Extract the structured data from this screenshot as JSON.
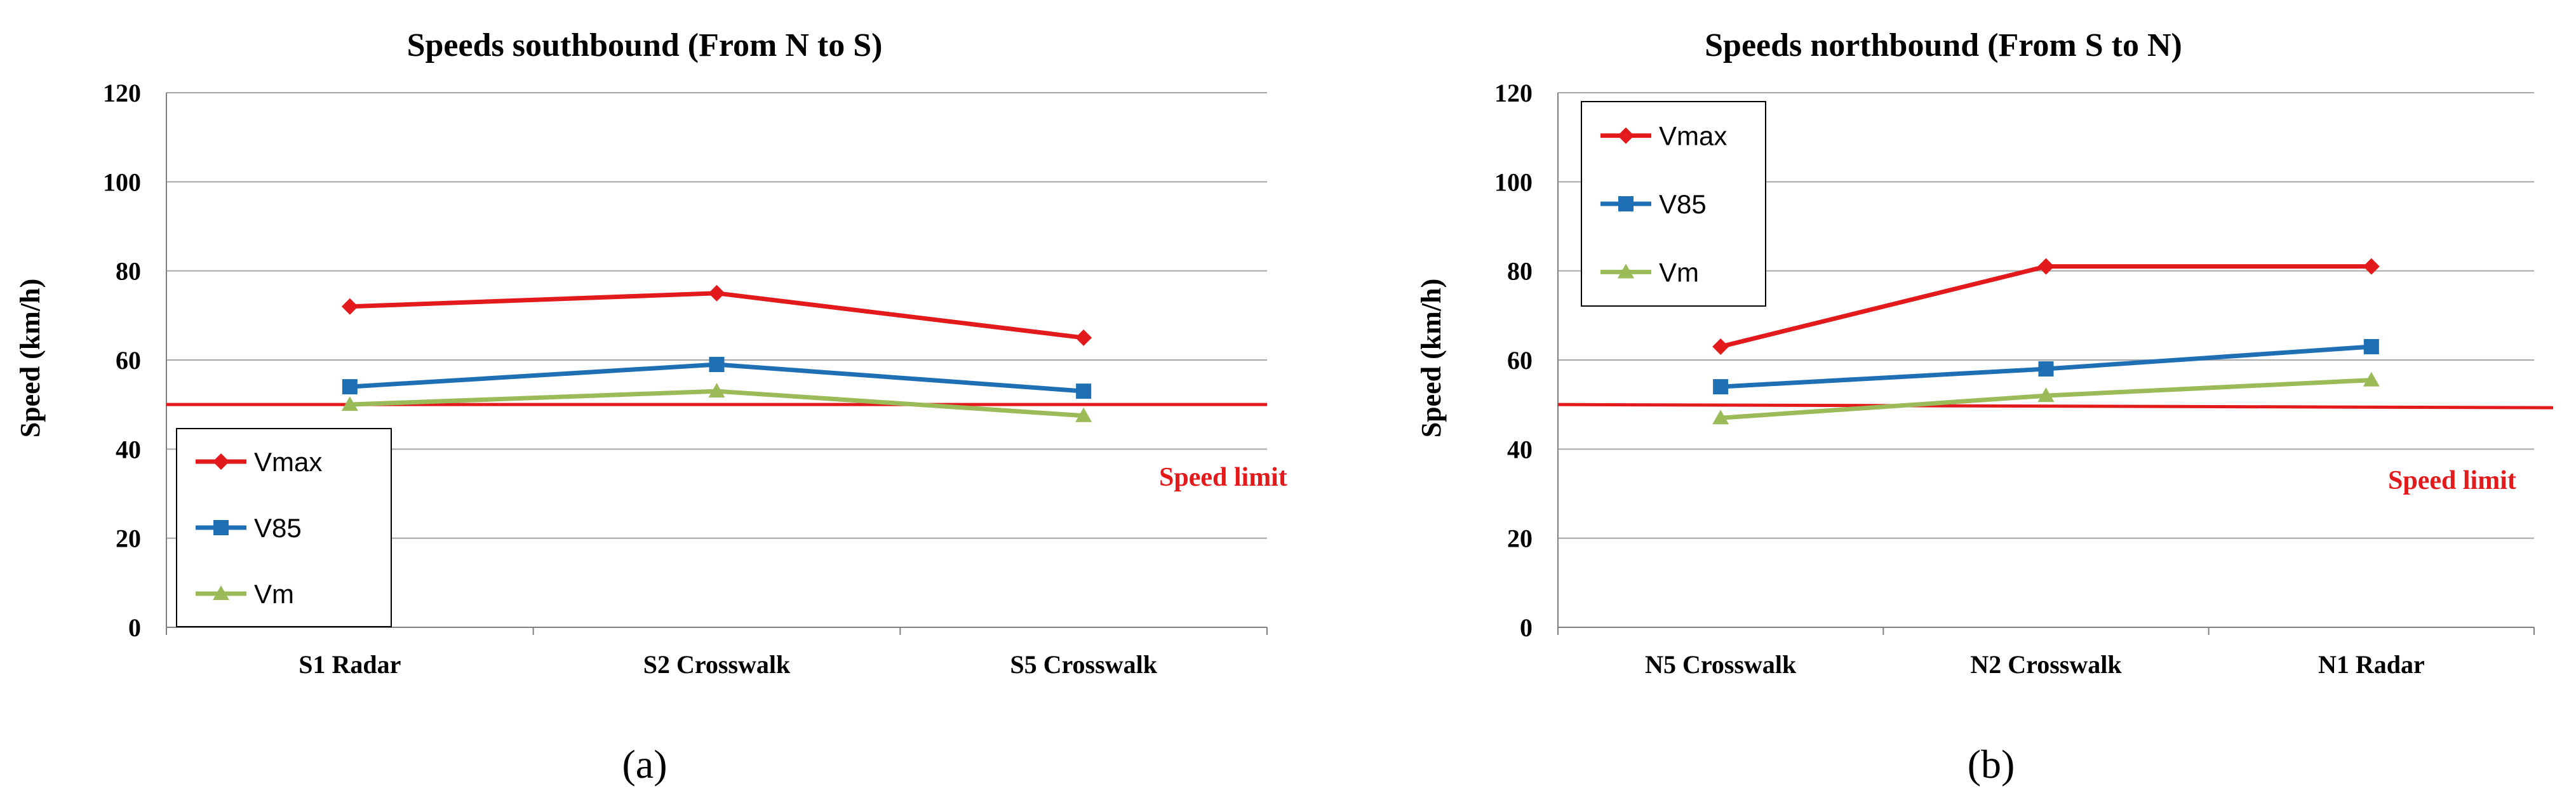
{
  "chart_data": [
    {
      "type": "line",
      "title": "Speeds southbound (From N to S)",
      "ylabel": "Speed (km/h)",
      "xlabel": "",
      "ylim": [
        0,
        120
      ],
      "yticks": [
        0,
        20,
        40,
        60,
        80,
        100,
        120
      ],
      "categories": [
        "S1 Radar",
        "S2 Crosswalk",
        "S5 Crosswalk"
      ],
      "series": [
        {
          "name": "Vmax",
          "color": "#e31a1c",
          "marker": "diamond",
          "values": [
            72,
            75,
            65
          ]
        },
        {
          "name": "V85",
          "color": "#1f6fb5",
          "marker": "square",
          "values": [
            54,
            59,
            53
          ]
        },
        {
          "name": "Vm",
          "color": "#9bbb59",
          "marker": "triangle",
          "values": [
            50,
            53,
            47.5
          ]
        }
      ],
      "reference_line": {
        "label": "Speed limit",
        "value": 50,
        "color": "#e31a1c"
      },
      "legend": "bottom-left",
      "caption": "(a)"
    },
    {
      "type": "line",
      "title": "Speeds northbound (From S to N)",
      "ylabel": "Speed (km/h)",
      "xlabel": "",
      "ylim": [
        0,
        120
      ],
      "yticks": [
        0,
        20,
        40,
        60,
        80,
        100,
        120
      ],
      "categories": [
        "N5 Crosswalk",
        "N2 Crosswalk",
        "N1 Radar"
      ],
      "series": [
        {
          "name": "Vmax",
          "color": "#e31a1c",
          "marker": "diamond",
          "values": [
            63,
            81,
            81
          ]
        },
        {
          "name": "V85",
          "color": "#1f6fb5",
          "marker": "square",
          "values": [
            54,
            58,
            63
          ]
        },
        {
          "name": "Vm",
          "color": "#9bbb59",
          "marker": "triangle",
          "values": [
            47,
            52,
            55.5
          ]
        }
      ],
      "reference_line": {
        "label": "Speed limit",
        "value": 50,
        "color": "#e31a1c"
      },
      "legend": "top-left",
      "caption": "(b)"
    }
  ]
}
